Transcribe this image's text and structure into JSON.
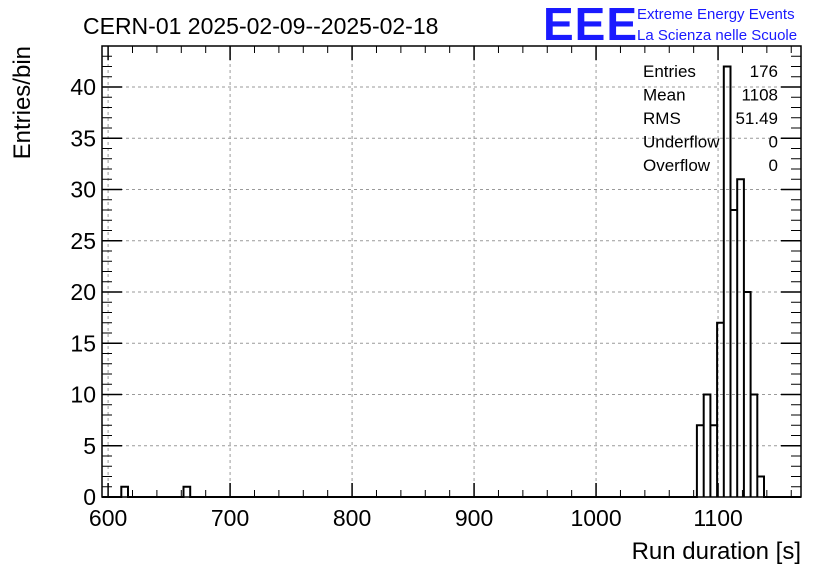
{
  "header": {
    "title": "CERN-01 2025-02-09--2025-02-18",
    "logo_text": "EEE",
    "logo_line1": "Extreme Energy Events",
    "logo_line2": "La Scienza nelle Scuole",
    "logo_color": "#1a1aff"
  },
  "stats": [
    {
      "label": "Entries",
      "value": "176"
    },
    {
      "label": "Mean",
      "value": "1108"
    },
    {
      "label": "RMS",
      "value": "51.49"
    },
    {
      "label": "Underflow",
      "value": "0"
    },
    {
      "label": "Overflow",
      "value": "0"
    }
  ],
  "chart_data": {
    "type": "histogram",
    "title": "CERN-01 2025-02-09--2025-02-18",
    "xlabel": "Run duration [s]",
    "ylabel": "Entries/bin",
    "xlim": [
      595,
      1168
    ],
    "ylim": [
      0,
      44
    ],
    "grid": true,
    "x_ticks": [
      600,
      700,
      800,
      900,
      1000,
      1100
    ],
    "y_ticks": [
      0,
      5,
      10,
      15,
      20,
      25,
      30,
      35,
      40
    ],
    "bin_width": 5.5,
    "bins": [
      {
        "x0": 610.8,
        "x1": 616.3,
        "count": 1
      },
      {
        "x0": 661.8,
        "x1": 667.3,
        "count": 1
      },
      {
        "x0": 1082.7,
        "x1": 1088.2,
        "count": 7
      },
      {
        "x0": 1088.2,
        "x1": 1093.7,
        "count": 10
      },
      {
        "x0": 1093.7,
        "x1": 1099.2,
        "count": 7
      },
      {
        "x0": 1099.2,
        "x1": 1104.7,
        "count": 17
      },
      {
        "x0": 1104.7,
        "x1": 1110.2,
        "count": 42
      },
      {
        "x0": 1110.2,
        "x1": 1115.7,
        "count": 28
      },
      {
        "x0": 1115.7,
        "x1": 1121.2,
        "count": 31
      },
      {
        "x0": 1121.2,
        "x1": 1126.7,
        "count": 20
      },
      {
        "x0": 1126.7,
        "x1": 1132.2,
        "count": 10
      },
      {
        "x0": 1132.2,
        "x1": 1137.7,
        "count": 2
      }
    ],
    "line_color": "#000000",
    "grid_color": "#9a9a9a"
  }
}
